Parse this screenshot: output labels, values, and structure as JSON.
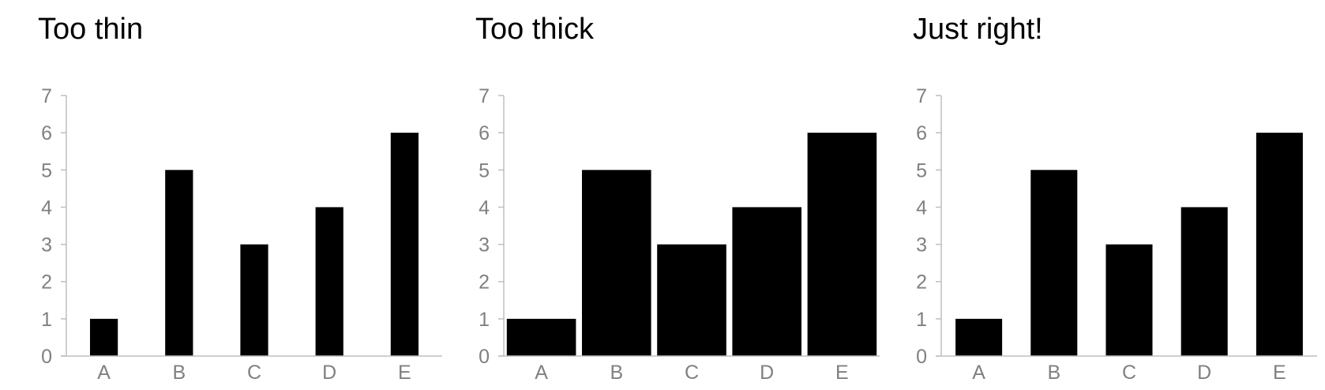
{
  "chart_data": [
    {
      "type": "bar",
      "title": "Too thin",
      "categories": [
        "A",
        "B",
        "C",
        "D",
        "E"
      ],
      "values": [
        1,
        5,
        3,
        4,
        6
      ],
      "ylim": [
        0,
        7
      ],
      "yticks": [
        0,
        1,
        2,
        3,
        4,
        5,
        6,
        7
      ],
      "bar_width_fraction": 0.37,
      "grid": false,
      "bar_color": "#000000",
      "axis_color": "#bfbfbf",
      "tick_label_color": "#808080"
    },
    {
      "type": "bar",
      "title": "Too thick",
      "categories": [
        "A",
        "B",
        "C",
        "D",
        "E"
      ],
      "values": [
        1,
        5,
        3,
        4,
        6
      ],
      "ylim": [
        0,
        7
      ],
      "yticks": [
        0,
        1,
        2,
        3,
        4,
        5,
        6,
        7
      ],
      "bar_width_fraction": 0.92,
      "grid": false,
      "bar_color": "#000000",
      "axis_color": "#bfbfbf",
      "tick_label_color": "#808080"
    },
    {
      "type": "bar",
      "title": "Just right!",
      "categories": [
        "A",
        "B",
        "C",
        "D",
        "E"
      ],
      "values": [
        1,
        5,
        3,
        4,
        6
      ],
      "ylim": [
        0,
        7
      ],
      "yticks": [
        0,
        1,
        2,
        3,
        4,
        5,
        6,
        7
      ],
      "bar_width_fraction": 0.62,
      "grid": false,
      "bar_color": "#000000",
      "axis_color": "#bfbfbf",
      "tick_label_color": "#808080"
    }
  ]
}
